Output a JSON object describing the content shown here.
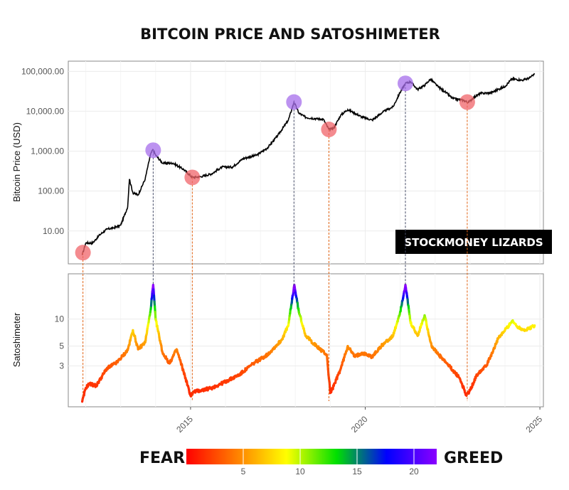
{
  "chart_data": [
    {
      "type": "line",
      "title": "BITCOIN PRICE AND SATOSHIMETER",
      "ylabel": "Bitcoin Price (USD)",
      "yscale": "log",
      "ylim": [
        1.5,
        180000
      ],
      "xlim": [
        2011.5,
        2025.1
      ],
      "y_ticks": [
        "10.00",
        "100.00",
        "1,000.00",
        "10,000.00",
        "100,000.00"
      ],
      "y_tick_values": [
        10,
        100,
        1000,
        10000,
        100000
      ],
      "grid": true,
      "series": [
        {
          "x": [
            2011.9,
            2012.0,
            2012.2,
            2012.4,
            2012.6,
            2012.8,
            2013.0,
            2013.2,
            2013.25,
            2013.35,
            2013.5,
            2013.7,
            2013.85,
            2013.92,
            2014.0,
            2014.2,
            2014.5,
            2014.8,
            2015.05,
            2015.3,
            2015.6,
            2015.9,
            2016.2,
            2016.5,
            2016.9,
            2017.2,
            2017.5,
            2017.8,
            2017.96,
            2018.1,
            2018.3,
            2018.6,
            2018.8,
            2018.96,
            2019.1,
            2019.3,
            2019.5,
            2019.7,
            2019.9,
            2020.2,
            2020.5,
            2020.8,
            2021.0,
            2021.15,
            2021.3,
            2021.5,
            2021.7,
            2021.87,
            2022.1,
            2022.3,
            2022.5,
            2022.8,
            2022.95,
            2023.1,
            2023.3,
            2023.6,
            2023.8,
            2024.0,
            2024.2,
            2024.5,
            2024.7,
            2024.85
          ],
          "y": [
            2.5,
            5,
            5,
            8,
            11,
            12,
            14,
            40,
            200,
            90,
            80,
            200,
            800,
            1100,
            800,
            500,
            500,
            350,
            220,
            230,
            270,
            400,
            400,
            650,
            800,
            1200,
            2500,
            6000,
            17000,
            9000,
            7000,
            6500,
            6300,
            3500,
            3800,
            8000,
            11000,
            9000,
            7200,
            6000,
            9500,
            13000,
            30000,
            50000,
            55000,
            35000,
            45000,
            64000,
            40000,
            30000,
            21000,
            19000,
            16500,
            22000,
            28000,
            29000,
            35000,
            42000,
            65000,
            60000,
            68000,
            85000
          ]
        }
      ]
    },
    {
      "type": "line",
      "ylabel": "Satoshimeter",
      "yscale": "log",
      "ylim": [
        1.05,
        32
      ],
      "xlim": [
        2011.5,
        2025.1
      ],
      "x_ticks": [
        "2015",
        "2020",
        "2025"
      ],
      "x_tick_values": [
        2015,
        2020,
        2025
      ],
      "y_ticks": [
        "3",
        "5",
        "10"
      ],
      "y_tick_values": [
        3,
        5,
        10
      ],
      "grid": true,
      "color_encoding": "value",
      "series": [
        {
          "x": [
            2011.9,
            2012.0,
            2012.1,
            2012.3,
            2012.6,
            2012.9,
            2013.2,
            2013.35,
            2013.5,
            2013.7,
            2013.85,
            2013.93,
            2014.0,
            2014.2,
            2014.4,
            2014.6,
            2014.8,
            2015.0,
            2015.1,
            2015.3,
            2015.6,
            2016.0,
            2016.4,
            2016.8,
            2017.2,
            2017.6,
            2017.8,
            2017.97,
            2018.1,
            2018.3,
            2018.6,
            2018.9,
            2019.0,
            2019.1,
            2019.3,
            2019.5,
            2019.7,
            2019.9,
            2020.2,
            2020.5,
            2020.8,
            2021.0,
            2021.15,
            2021.3,
            2021.5,
            2021.7,
            2021.9,
            2022.1,
            2022.4,
            2022.7,
            2022.9,
            2023.0,
            2023.2,
            2023.5,
            2023.8,
            2024.0,
            2024.2,
            2024.4,
            2024.6,
            2024.85
          ],
          "y": [
            1.2,
            1.7,
            1.9,
            1.8,
            2.8,
            3.3,
            4.5,
            7.5,
            4.6,
            5.5,
            12,
            24,
            10,
            4.2,
            3.2,
            4.6,
            2.6,
            1.4,
            1.55,
            1.6,
            1.7,
            2.0,
            2.4,
            3.2,
            4.0,
            5.8,
            8.5,
            24,
            12,
            6.5,
            5.0,
            4.0,
            1.5,
            1.8,
            2.8,
            5.0,
            3.8,
            4.2,
            3.8,
            5.2,
            6.5,
            12,
            24,
            9.0,
            6.5,
            11,
            5.0,
            4.0,
            3.0,
            2.2,
            1.4,
            1.6,
            2.4,
            3.2,
            6.0,
            7.5,
            9.5,
            8.0,
            7.5,
            8.5
          ]
        }
      ],
      "annotations": [
        {
          "x": 2011.92,
          "marker": "red",
          "label": "bottom"
        },
        {
          "x": 2013.93,
          "marker": "purple",
          "label": "top"
        },
        {
          "x": 2015.05,
          "marker": "red",
          "label": "bottom"
        },
        {
          "x": 2017.96,
          "marker": "purple",
          "label": "top"
        },
        {
          "x": 2018.96,
          "marker": "red",
          "label": "bottom"
        },
        {
          "x": 2021.15,
          "marker": "purple",
          "label": "top"
        },
        {
          "x": 2022.92,
          "marker": "red",
          "label": "bottom"
        }
      ]
    }
  ],
  "watermark": "STOCKMONEY LIZARDS",
  "legend": {
    "left_label": "FEAR",
    "right_label": "GREED",
    "tick_labels": [
      "5",
      "10",
      "15",
      "20"
    ],
    "tick_values": [
      5,
      10,
      15,
      20
    ],
    "range": [
      0,
      22
    ],
    "colors": [
      "#ff0000",
      "#ff7f00",
      "#ffff00",
      "#00e000",
      "#0000ff",
      "#8b00ff"
    ]
  }
}
